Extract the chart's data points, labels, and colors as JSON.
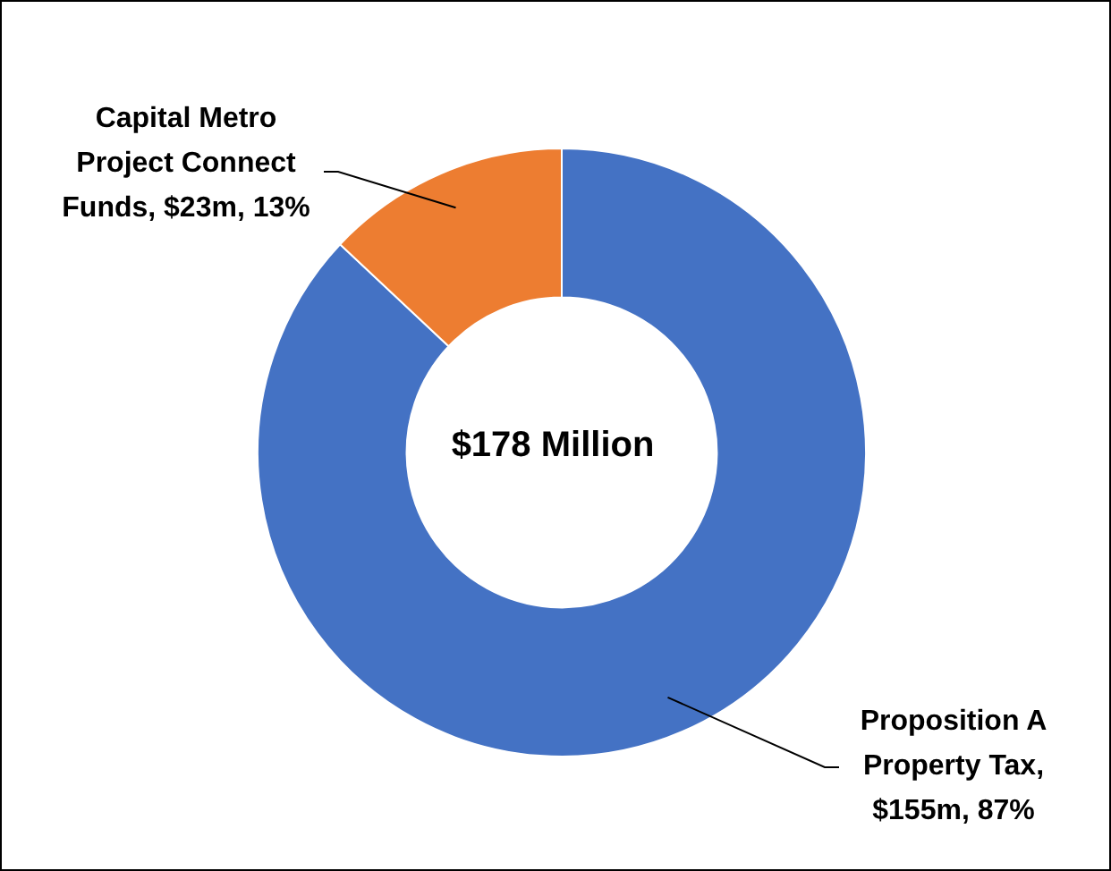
{
  "chart_data": {
    "type": "donut",
    "categories": [
      "Proposition A Property Tax, $155m, 87%",
      "Capital Metro Project Connect Funds, $23m, 13%"
    ],
    "values": [
      87,
      13
    ],
    "colors": [
      "#4472c4",
      "#ed7d31"
    ],
    "annotations": [
      "$178 Million"
    ]
  }
}
